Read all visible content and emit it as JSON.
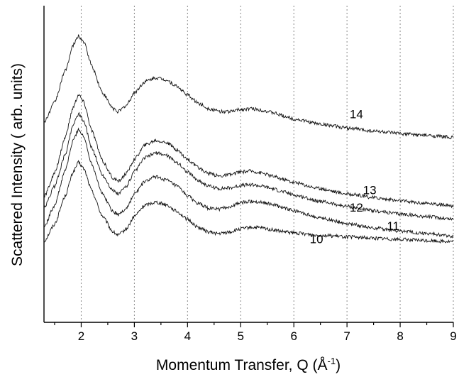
{
  "chart_data": {
    "type": "line",
    "xlabel": "Momentum Transfer, Q (Å",
    "xlabel_sup": "-1",
    "xlabel_close": ")",
    "ylabel": "Scattered Intensity ( arb. units)",
    "xlim": [
      1.3,
      9.0
    ],
    "ylim": [
      0,
      10
    ],
    "x_ticks": [
      2,
      3,
      4,
      5,
      6,
      7,
      8,
      9
    ],
    "x_tick_labels": [
      "2",
      "3",
      "4",
      "5",
      "6",
      "7",
      "8",
      "9"
    ],
    "grid": "vertical dotted at major ticks",
    "y_ticks_shown": false,
    "series": [
      {
        "name": "10",
        "points": [
          [
            1.3,
            2.55
          ],
          [
            1.5,
            3.1
          ],
          [
            1.7,
            4.0
          ],
          [
            1.85,
            4.75
          ],
          [
            1.95,
            5.05
          ],
          [
            2.05,
            4.85
          ],
          [
            2.2,
            4.15
          ],
          [
            2.4,
            3.35
          ],
          [
            2.6,
            2.85
          ],
          [
            2.7,
            2.75
          ],
          [
            2.85,
            2.95
          ],
          [
            3.0,
            3.35
          ],
          [
            3.2,
            3.7
          ],
          [
            3.4,
            3.8
          ],
          [
            3.6,
            3.72
          ],
          [
            3.8,
            3.5
          ],
          [
            4.0,
            3.25
          ],
          [
            4.2,
            3.0
          ],
          [
            4.4,
            2.85
          ],
          [
            4.6,
            2.8
          ],
          [
            4.8,
            2.85
          ],
          [
            5.0,
            2.95
          ],
          [
            5.2,
            3.0
          ],
          [
            5.4,
            2.98
          ],
          [
            5.6,
            2.92
          ],
          [
            5.8,
            2.86
          ],
          [
            6.0,
            2.82
          ],
          [
            6.5,
            2.75
          ],
          [
            7.0,
            2.7
          ],
          [
            7.5,
            2.66
          ],
          [
            8.0,
            2.62
          ],
          [
            8.5,
            2.58
          ],
          [
            9.0,
            2.55
          ]
        ]
      },
      {
        "name": "11",
        "points": [
          [
            1.3,
            3.0
          ],
          [
            1.5,
            3.7
          ],
          [
            1.7,
            4.8
          ],
          [
            1.85,
            5.75
          ],
          [
            1.95,
            6.1
          ],
          [
            2.05,
            5.85
          ],
          [
            2.2,
            5.0
          ],
          [
            2.4,
            4.05
          ],
          [
            2.6,
            3.5
          ],
          [
            2.7,
            3.4
          ],
          [
            2.85,
            3.6
          ],
          [
            3.0,
            4.05
          ],
          [
            3.2,
            4.45
          ],
          [
            3.4,
            4.6
          ],
          [
            3.6,
            4.5
          ],
          [
            3.8,
            4.3
          ],
          [
            4.0,
            4.0
          ],
          [
            4.2,
            3.75
          ],
          [
            4.4,
            3.6
          ],
          [
            4.6,
            3.58
          ],
          [
            4.8,
            3.65
          ],
          [
            5.0,
            3.78
          ],
          [
            5.2,
            3.82
          ],
          [
            5.4,
            3.8
          ],
          [
            5.6,
            3.72
          ],
          [
            5.8,
            3.62
          ],
          [
            6.0,
            3.52
          ],
          [
            6.5,
            3.3
          ],
          [
            7.0,
            3.12
          ],
          [
            7.5,
            2.98
          ],
          [
            8.0,
            2.88
          ],
          [
            8.5,
            2.8
          ],
          [
            9.0,
            2.72
          ]
        ]
      },
      {
        "name": "12",
        "points": [
          [
            1.3,
            3.6
          ],
          [
            1.5,
            4.3
          ],
          [
            1.7,
            5.3
          ],
          [
            1.85,
            6.25
          ],
          [
            1.95,
            6.6
          ],
          [
            2.05,
            6.35
          ],
          [
            2.2,
            5.5
          ],
          [
            2.4,
            4.65
          ],
          [
            2.6,
            4.15
          ],
          [
            2.7,
            4.05
          ],
          [
            2.85,
            4.3
          ],
          [
            3.0,
            4.75
          ],
          [
            3.2,
            5.2
          ],
          [
            3.4,
            5.35
          ],
          [
            3.6,
            5.28
          ],
          [
            3.8,
            5.05
          ],
          [
            4.0,
            4.75
          ],
          [
            4.2,
            4.48
          ],
          [
            4.4,
            4.3
          ],
          [
            4.6,
            4.22
          ],
          [
            4.8,
            4.25
          ],
          [
            5.0,
            4.32
          ],
          [
            5.2,
            4.35
          ],
          [
            5.4,
            4.3
          ],
          [
            5.6,
            4.22
          ],
          [
            5.8,
            4.12
          ],
          [
            6.0,
            4.02
          ],
          [
            6.5,
            3.82
          ],
          [
            7.0,
            3.66
          ],
          [
            7.5,
            3.52
          ],
          [
            8.0,
            3.42
          ],
          [
            8.5,
            3.34
          ],
          [
            9.0,
            3.26
          ]
        ]
      },
      {
        "name": "13",
        "points": [
          [
            1.3,
            3.95
          ],
          [
            1.5,
            4.7
          ],
          [
            1.7,
            5.85
          ],
          [
            1.85,
            6.8
          ],
          [
            1.95,
            7.2
          ],
          [
            2.05,
            6.95
          ],
          [
            2.2,
            6.05
          ],
          [
            2.4,
            5.1
          ],
          [
            2.6,
            4.55
          ],
          [
            2.7,
            4.45
          ],
          [
            2.85,
            4.7
          ],
          [
            3.0,
            5.15
          ],
          [
            3.2,
            5.6
          ],
          [
            3.4,
            5.75
          ],
          [
            3.6,
            5.68
          ],
          [
            3.8,
            5.45
          ],
          [
            4.0,
            5.15
          ],
          [
            4.2,
            4.88
          ],
          [
            4.4,
            4.7
          ],
          [
            4.6,
            4.62
          ],
          [
            4.8,
            4.66
          ],
          [
            5.0,
            4.75
          ],
          [
            5.2,
            4.78
          ],
          [
            5.4,
            4.72
          ],
          [
            5.6,
            4.62
          ],
          [
            5.8,
            4.52
          ],
          [
            6.0,
            4.42
          ],
          [
            6.5,
            4.22
          ],
          [
            7.0,
            4.06
          ],
          [
            7.5,
            3.94
          ],
          [
            8.0,
            3.84
          ],
          [
            8.5,
            3.76
          ],
          [
            9.0,
            3.68
          ]
        ]
      },
      {
        "name": "14",
        "points": [
          [
            1.3,
            6.3
          ],
          [
            1.5,
            6.95
          ],
          [
            1.7,
            7.95
          ],
          [
            1.85,
            8.75
          ],
          [
            1.95,
            9.05
          ],
          [
            2.05,
            8.85
          ],
          [
            2.2,
            8.1
          ],
          [
            2.4,
            7.25
          ],
          [
            2.6,
            6.75
          ],
          [
            2.7,
            6.65
          ],
          [
            2.85,
            6.85
          ],
          [
            3.0,
            7.25
          ],
          [
            3.2,
            7.6
          ],
          [
            3.4,
            7.72
          ],
          [
            3.6,
            7.66
          ],
          [
            3.8,
            7.45
          ],
          [
            4.0,
            7.18
          ],
          [
            4.2,
            6.92
          ],
          [
            4.4,
            6.75
          ],
          [
            4.6,
            6.66
          ],
          [
            4.8,
            6.66
          ],
          [
            5.0,
            6.72
          ],
          [
            5.2,
            6.75
          ],
          [
            5.4,
            6.7
          ],
          [
            5.6,
            6.62
          ],
          [
            5.8,
            6.52
          ],
          [
            6.0,
            6.42
          ],
          [
            6.5,
            6.26
          ],
          [
            7.0,
            6.14
          ],
          [
            7.5,
            6.04
          ],
          [
            8.0,
            5.96
          ],
          [
            8.5,
            5.9
          ],
          [
            9.0,
            5.84
          ]
        ]
      }
    ],
    "series_labels": [
      {
        "text": "14",
        "x": 7.05,
        "y": 6.45
      },
      {
        "text": "13",
        "x": 7.3,
        "y": 4.05
      },
      {
        "text": "12",
        "x": 7.05,
        "y": 3.5
      },
      {
        "text": "11",
        "x": 7.75,
        "y": 2.92
      },
      {
        "text": "10",
        "x": 6.3,
        "y": 2.5
      }
    ]
  }
}
